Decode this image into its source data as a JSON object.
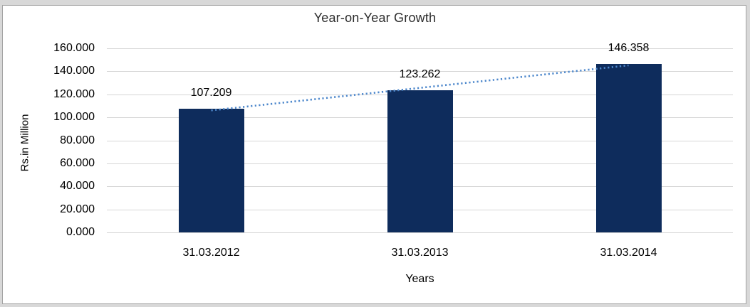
{
  "chart_data": {
    "type": "bar",
    "title": "Year-on-Year Growth",
    "categories": [
      "31.03.2012",
      "31.03.2013",
      "31.03.2014"
    ],
    "values": [
      107.209,
      123.262,
      146.358
    ],
    "value_labels": [
      "107.209",
      "123.262",
      "146.358"
    ],
    "xlabel": "Years",
    "ylabel": "Rs.in Million",
    "ylim": [
      0,
      160
    ],
    "ytick_step": 20,
    "ytick_labels": [
      "0.000",
      "20.000",
      "40.000",
      "60.000",
      "80.000",
      "100.000",
      "120.000",
      "140.000",
      "160.000"
    ],
    "grid": true,
    "legend_position": "none",
    "trendline": {
      "type": "linear",
      "style": "dotted"
    },
    "colors": {
      "bar": "#0e2c5c",
      "trendline": "#4e88cc",
      "gridline": "#d6d6d6",
      "axis_text": "#000000",
      "title_text": "#2b2b2b",
      "panel_border": "#a3a3a3",
      "page_background": "#d8d8d8"
    }
  }
}
